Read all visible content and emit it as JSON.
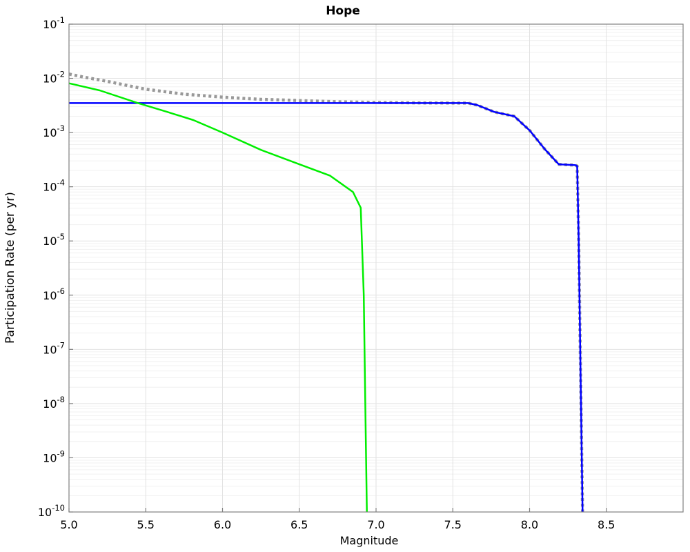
{
  "title": "Hope",
  "axes": {
    "xlabel": "Magnitude",
    "ylabel": "Participation Rate (per yr)"
  },
  "colors": {
    "background": "#ffffff",
    "axis_frame": "#808080",
    "grid_major": "#e2e2e2",
    "grid_minor": "#f0f0f0",
    "tick_text": "#000000",
    "dotted_series": "#999999",
    "blue_series": "#0000ff",
    "green_series": "#00ee00"
  },
  "chart_data": {
    "type": "line",
    "title": "Hope",
    "xlabel": "Magnitude",
    "ylabel": "Participation Rate (per yr)",
    "xlim": [
      5.0,
      9.0
    ],
    "ylim_log10": [
      -10,
      -1
    ],
    "grid": true,
    "legend_position": "none",
    "x_tick_values": [
      5.0,
      5.5,
      6.0,
      6.5,
      7.0,
      7.5,
      8.0,
      8.5
    ],
    "x_ticks": [
      "5.0",
      "5.5",
      "6.0",
      "6.5",
      "7.0",
      "7.5",
      "8.0",
      "8.5"
    ],
    "y_tick_base": "10",
    "y_tick_exponents": [
      "-1",
      "-2",
      "-3",
      "-4",
      "-5",
      "-6",
      "-7",
      "-8",
      "-9",
      "-10"
    ],
    "series": [
      {
        "name": "total-rate-dotted",
        "style": "dotted",
        "color": "#999999",
        "width": 4.5,
        "points": [
          [
            5.0,
            0.012
          ],
          [
            5.1,
            0.0105
          ],
          [
            5.25,
            0.0088
          ],
          [
            5.4,
            0.0072
          ],
          [
            5.5,
            0.0063
          ],
          [
            5.75,
            0.0051
          ],
          [
            6.0,
            0.0045
          ],
          [
            6.25,
            0.0041
          ],
          [
            6.5,
            0.0039
          ],
          [
            6.75,
            0.0037
          ],
          [
            7.0,
            0.0036
          ],
          [
            7.3,
            0.00352
          ],
          [
            7.6,
            0.0035
          ],
          [
            7.66,
            0.0032
          ],
          [
            7.77,
            0.0024
          ],
          [
            7.9,
            0.002
          ],
          [
            8.0,
            0.0011
          ],
          [
            8.1,
            0.00049
          ],
          [
            8.19,
            0.00026
          ],
          [
            8.3,
            0.00025
          ],
          [
            8.31,
            0.00024
          ],
          [
            8.32,
            1e-05
          ],
          [
            8.33,
            1e-07
          ],
          [
            8.345,
            1e-10
          ]
        ]
      },
      {
        "name": "blue-rate-solid",
        "style": "solid",
        "color": "#0000ff",
        "width": 2.5,
        "points": [
          [
            5.0,
            0.0035
          ],
          [
            7.6,
            0.0035
          ],
          [
            7.66,
            0.0032
          ],
          [
            7.77,
            0.0024
          ],
          [
            7.9,
            0.002
          ],
          [
            8.0,
            0.0011
          ],
          [
            8.1,
            0.00049
          ],
          [
            8.19,
            0.00026
          ],
          [
            8.3,
            0.00025
          ],
          [
            8.31,
            0.00024
          ],
          [
            8.32,
            1e-05
          ],
          [
            8.33,
            1e-07
          ],
          [
            8.345,
            1e-10
          ]
        ]
      },
      {
        "name": "green-rate-solid",
        "style": "solid",
        "color": "#00ee00",
        "width": 2.5,
        "points": [
          [
            5.0,
            0.0081
          ],
          [
            5.2,
            0.006
          ],
          [
            5.45,
            0.0035
          ],
          [
            5.64,
            0.0024
          ],
          [
            5.81,
            0.0017
          ],
          [
            6.0,
            0.001
          ],
          [
            6.25,
            0.00048
          ],
          [
            6.5,
            0.00026
          ],
          [
            6.7,
            0.00016
          ],
          [
            6.85,
            8e-05
          ],
          [
            6.9,
            4.1e-05
          ],
          [
            6.92,
            1e-06
          ],
          [
            6.93,
            1e-08
          ],
          [
            6.94,
            1e-10
          ]
        ]
      }
    ]
  }
}
